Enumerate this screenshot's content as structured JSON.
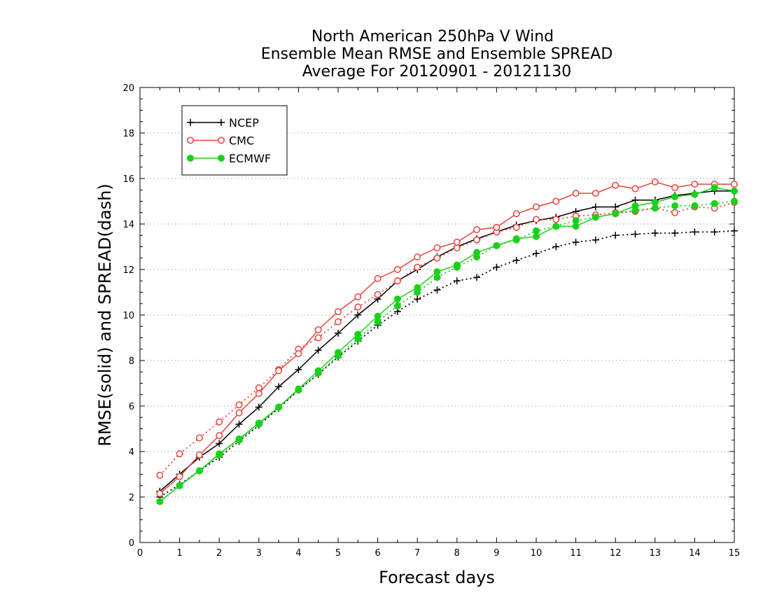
{
  "chart_data": {
    "type": "line",
    "title": [
      "North American 250hPa V Wind",
      "Ensemble Mean RMSE and Ensemble SPREAD",
      "Average For 20120901 - 20121130"
    ],
    "xlabel": "Forecast days",
    "ylabel": "RMSE(solid) and SPREAD(dash)",
    "xlim": [
      0,
      15
    ],
    "ylim": [
      0,
      20
    ],
    "x_ticks": [
      0,
      1,
      2,
      3,
      4,
      5,
      6,
      7,
      8,
      9,
      10,
      11,
      12,
      13,
      14,
      15
    ],
    "y_ticks": [
      0,
      2,
      4,
      6,
      8,
      10,
      12,
      14,
      16,
      18,
      20
    ],
    "grid": "horizontal-dotted",
    "legend_position": "top-left",
    "x": [
      0.5,
      1,
      1.5,
      2,
      2.5,
      3,
      3.5,
      4,
      4.5,
      5,
      5.5,
      6,
      6.5,
      7,
      7.5,
      8,
      8.5,
      9,
      9.5,
      10,
      10.5,
      11,
      11.5,
      12,
      12.5,
      13,
      13.5,
      14,
      14.5,
      15
    ],
    "series": [
      {
        "name": "NCEP",
        "color": "#000000",
        "marker": "plus",
        "rmse": [
          2.25,
          3.0,
          3.75,
          4.35,
          5.2,
          5.95,
          6.85,
          7.6,
          8.45,
          9.2,
          10.0,
          10.7,
          11.5,
          12.0,
          12.55,
          13.0,
          13.35,
          13.65,
          13.95,
          14.15,
          14.3,
          14.55,
          14.75,
          14.75,
          15.05,
          15.05,
          15.25,
          15.35,
          15.45,
          15.45
        ],
        "spread": [
          2.0,
          2.55,
          3.15,
          3.75,
          4.45,
          5.15,
          5.9,
          6.7,
          7.4,
          8.15,
          8.85,
          9.55,
          10.15,
          10.7,
          11.1,
          11.5,
          11.65,
          12.1,
          12.4,
          12.7,
          13.0,
          13.2,
          13.3,
          13.5,
          13.55,
          13.6,
          13.6,
          13.65,
          13.65,
          13.7
        ]
      },
      {
        "name": "CMC",
        "color": "#e8413c",
        "marker": "open-circle",
        "rmse": [
          2.15,
          2.9,
          3.85,
          4.7,
          5.7,
          6.55,
          7.55,
          8.3,
          9.35,
          10.15,
          10.8,
          11.6,
          12.0,
          12.55,
          12.95,
          13.2,
          13.75,
          13.85,
          14.45,
          14.75,
          15.0,
          15.35,
          15.35,
          15.7,
          15.55,
          15.85,
          15.6,
          15.75,
          15.75,
          15.75
        ],
        "spread": [
          2.95,
          3.9,
          4.6,
          5.3,
          6.05,
          6.8,
          7.6,
          8.5,
          9.0,
          9.7,
          10.35,
          10.9,
          11.5,
          12.1,
          12.5,
          12.95,
          13.3,
          13.65,
          13.85,
          14.2,
          14.2,
          14.35,
          14.4,
          14.5,
          14.55,
          14.7,
          14.5,
          14.75,
          14.7,
          14.95
        ]
      },
      {
        "name": "ECMWF",
        "color": "#1ad11a",
        "marker": "filled-circle",
        "rmse": [
          1.8,
          2.5,
          3.15,
          3.9,
          4.55,
          5.25,
          5.95,
          6.75,
          7.55,
          8.35,
          9.15,
          9.95,
          10.7,
          11.2,
          11.9,
          12.2,
          12.75,
          13.05,
          13.35,
          13.45,
          13.9,
          13.9,
          14.3,
          14.45,
          14.8,
          14.95,
          15.2,
          15.3,
          15.6,
          15.45
        ],
        "spread": [
          1.8,
          2.5,
          3.15,
          3.85,
          4.5,
          5.2,
          5.95,
          6.7,
          7.45,
          8.2,
          8.95,
          9.7,
          10.4,
          11.0,
          11.65,
          12.1,
          12.55,
          13.05,
          13.3,
          13.7,
          13.9,
          14.15,
          14.3,
          14.45,
          14.6,
          14.7,
          14.8,
          14.8,
          14.9,
          15.0
        ]
      }
    ]
  }
}
